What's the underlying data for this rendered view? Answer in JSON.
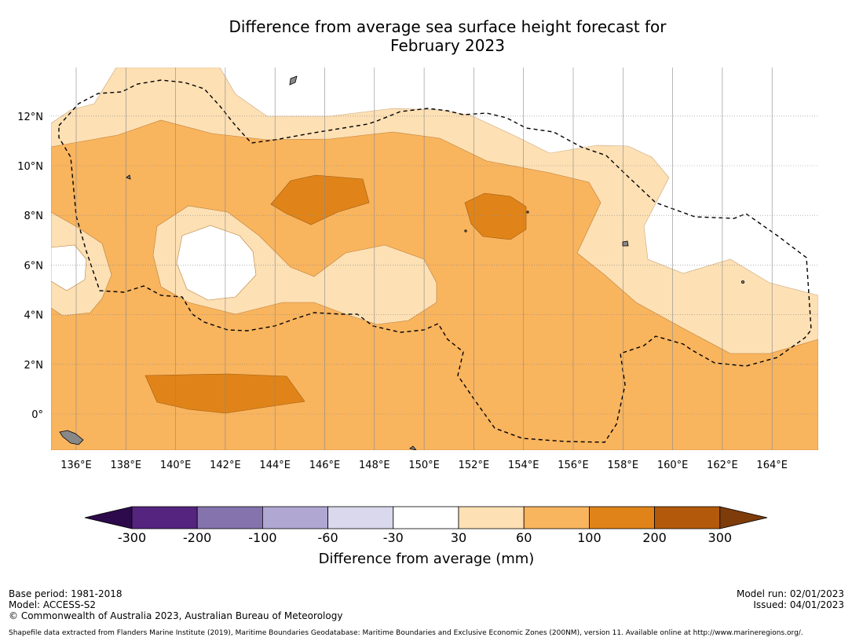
{
  "title": {
    "line1": "Difference from average sea surface height forecast for",
    "line2": "February 2023"
  },
  "map": {
    "lon_labels": [
      "136°E",
      "138°E",
      "140°E",
      "142°E",
      "144°E",
      "146°E",
      "148°E",
      "150°E",
      "152°E",
      "154°E",
      "156°E",
      "158°E",
      "160°E",
      "162°E",
      "164°E"
    ],
    "lat_labels": [
      "12°N",
      "10°N",
      "8°N",
      "6°N",
      "4°N",
      "2°N",
      "0°"
    ],
    "lon_values": [
      136,
      138,
      140,
      142,
      144,
      146,
      148,
      150,
      152,
      154,
      156,
      158,
      160,
      162,
      164
    ],
    "lat_values": [
      12,
      10,
      8,
      6,
      4,
      2,
      0
    ]
  },
  "colorbar": {
    "label": "Difference from average (mm)",
    "ticks": [
      "-300",
      "-200",
      "-100",
      "-60",
      "-30",
      "30",
      "60",
      "100",
      "200",
      "300"
    ],
    "colors": {
      "under": "#2d0a4b",
      "bins": [
        "#54247f",
        "#8473ad",
        "#b0a8d2",
        "#d9d8ec",
        "#ffffff",
        "#fde0b4",
        "#f9b45e",
        "#e08419",
        "#b3590b"
      ],
      "over": "#7d3c0a"
    }
  },
  "footer": {
    "base_period": "Base period: 1981-2018",
    "model": "Model: ACCESS-S2",
    "copyright": "© Commonwealth of Australia 2023, Australian Bureau of Meteorology",
    "shapefile": "Shapefile data extracted from Flanders Marine Institute (2019), Maritime Boundaries Geodatabase: Maritime Boundaries and Exclusive Economic Zones (200NM), version 11. Available online at http://www.marineregions.org/.",
    "model_run": "Model run: 02/01/2023",
    "issued": "Issued: 04/01/2023"
  }
}
